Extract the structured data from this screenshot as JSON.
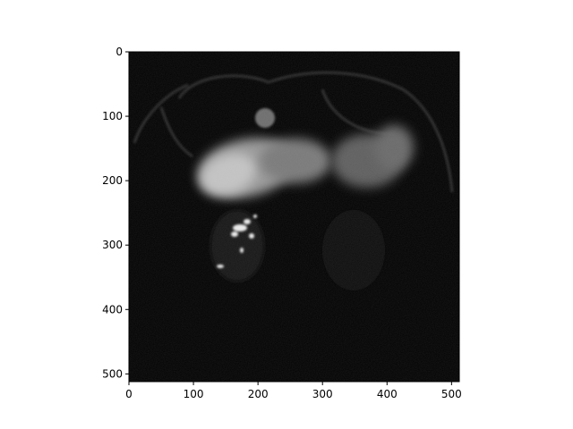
{
  "figure": {
    "background": "#ffffff",
    "image": {
      "description_kind": "grayscale-mri-axial-slice",
      "colormap": "gray",
      "extent": {
        "xlim": [
          0,
          511
        ],
        "ylim": [
          511,
          0
        ]
      }
    },
    "axes": {
      "x_ticks": [
        "0",
        "100",
        "200",
        "300",
        "400",
        "500"
      ],
      "y_ticks": [
        "0",
        "100",
        "200",
        "300",
        "400",
        "500"
      ],
      "x_tick_values": [
        0,
        100,
        200,
        300,
        400,
        500
      ],
      "y_tick_values": [
        0,
        100,
        200,
        300,
        400,
        500
      ],
      "range": [
        0,
        512
      ]
    }
  }
}
